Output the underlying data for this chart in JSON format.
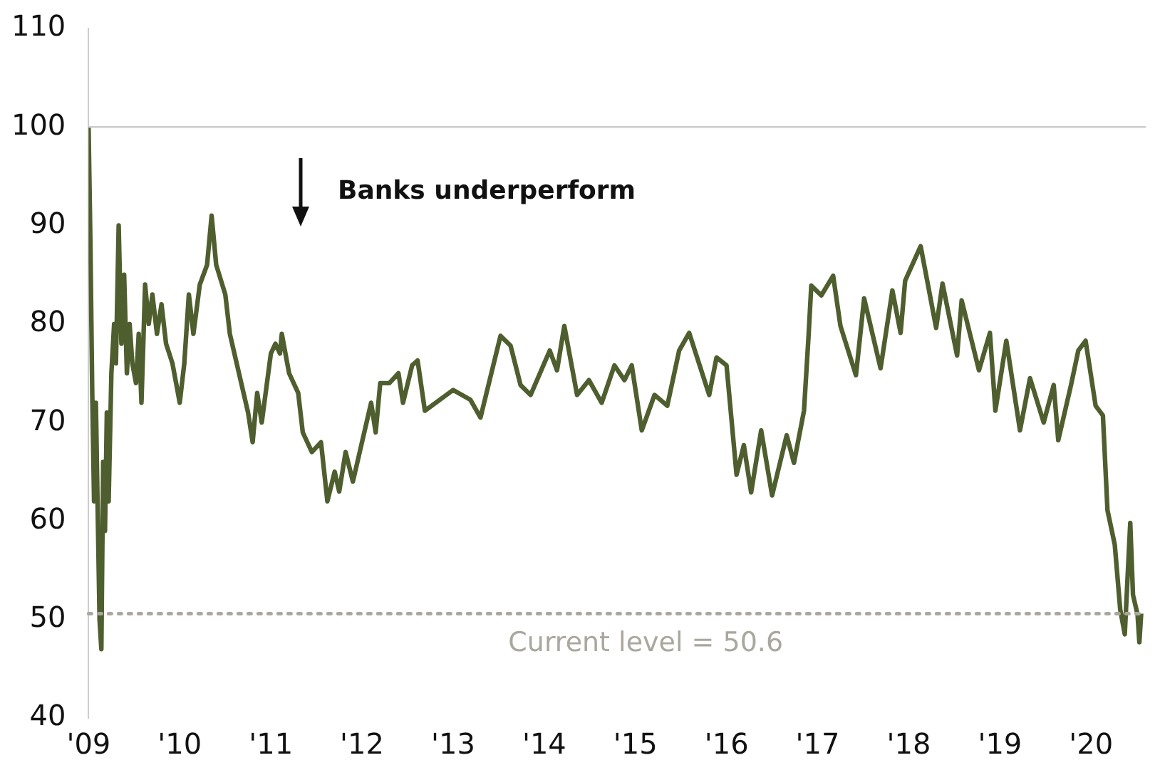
{
  "chart_data": {
    "type": "line",
    "annotations": [
      "Banks underperform"
    ],
    "x": [
      2009.0,
      2009.02,
      2009.04,
      2009.06,
      2009.08,
      2009.1,
      2009.12,
      2009.14,
      2009.16,
      2009.18,
      2009.2,
      2009.22,
      2009.25,
      2009.28,
      2009.3,
      2009.33,
      2009.36,
      2009.39,
      2009.42,
      2009.45,
      2009.48,
      2009.52,
      2009.55,
      2009.58,
      2009.62,
      2009.66,
      2009.7,
      2009.75,
      2009.8,
      2009.85,
      2009.92,
      2010.0,
      2010.05,
      2010.1,
      2010.15,
      2010.22,
      2010.3,
      2010.35,
      2010.4,
      2010.5,
      2010.55,
      2010.65,
      2010.75,
      2010.8,
      2010.85,
      2010.9,
      2011.0,
      2011.05,
      2011.1,
      2011.12,
      2011.2,
      2011.3,
      2011.35,
      2011.45,
      2011.55,
      2011.62,
      2011.7,
      2011.75,
      2011.82,
      2011.9,
      2012.0,
      2012.1,
      2012.15,
      2012.2,
      2012.3,
      2012.4,
      2012.45,
      2012.55,
      2012.61,
      2012.69,
      2013.0,
      2013.19,
      2013.3,
      2013.52,
      2013.63,
      2013.74,
      2013.85,
      2014.06,
      2014.14,
      2014.22,
      2014.36,
      2014.49,
      2014.63,
      2014.77,
      2014.88,
      2014.96,
      2015.07,
      2015.21,
      2015.35,
      2015.48,
      2015.59,
      2015.67,
      2015.81,
      2015.89,
      2016.0,
      2016.11,
      2016.19,
      2016.27,
      2016.38,
      2016.5,
      2016.66,
      2016.74,
      2016.85,
      2016.9,
      2016.93,
      2017.04,
      2017.17,
      2017.25,
      2017.42,
      2017.51,
      2017.69,
      2017.82,
      2017.91,
      2017.96,
      2018.13,
      2018.3,
      2018.37,
      2018.53,
      2018.58,
      2018.77,
      2018.89,
      2018.95,
      2019.07,
      2019.22,
      2019.33,
      2019.48,
      2019.59,
      2019.64,
      2019.78,
      2019.86,
      2019.94,
      2020.05,
      2020.13,
      2020.18,
      2020.26,
      2020.32,
      2020.37,
      2020.43,
      2020.46,
      2020.51,
      2020.53,
      2020.55
    ],
    "series": [
      {
        "color": "#4f5e2e",
        "values": [
          100,
          88,
          73,
          62,
          72,
          61,
          50,
          47,
          66,
          59,
          71,
          62,
          75,
          80,
          76,
          90,
          78,
          85,
          75,
          80,
          76,
          74,
          79,
          72,
          84,
          80,
          83,
          79,
          82,
          78,
          76,
          72,
          76,
          83,
          79,
          84,
          86,
          91,
          86,
          83,
          79,
          75,
          71,
          68,
          73,
          70,
          77,
          78,
          77,
          79,
          75,
          73,
          69,
          67,
          68,
          62,
          65,
          63,
          67,
          64,
          68,
          72,
          69,
          74,
          74,
          75,
          72,
          75.8,
          76.3,
          71.2,
          73.3,
          72.3,
          70.5,
          78.8,
          77.8,
          73.8,
          72.8,
          77.3,
          75.3,
          79.8,
          72.8,
          74.3,
          72,
          75.8,
          74.3,
          75.8,
          69.2,
          72.8,
          71.7,
          77.3,
          79.1,
          76.8,
          72.8,
          76.6,
          75.8,
          64.7,
          67.7,
          62.9,
          69.2,
          62.6,
          68.7,
          65.9,
          71.2,
          78.8,
          83.9,
          82.9,
          84.9,
          79.8,
          74.8,
          82.6,
          75.5,
          83.4,
          79.1,
          84.4,
          87.9,
          79.6,
          84.1,
          76.8,
          82.4,
          75.3,
          79.1,
          71.2,
          78.3,
          69.2,
          74.5,
          70,
          73.8,
          68.2,
          73.8,
          77.3,
          78.3,
          71.7,
          70.7,
          61.1,
          57.6,
          51,
          48.5,
          59.8,
          52.5,
          50.5,
          47.7,
          50.6
        ]
      }
    ],
    "xlim": [
      2009,
      2020.6
    ],
    "xticks": [
      {
        "value": 2009,
        "label": "'09"
      },
      {
        "value": 2010,
        "label": "'10"
      },
      {
        "value": 2011,
        "label": "'11"
      },
      {
        "value": 2012,
        "label": "'12"
      },
      {
        "value": 2013,
        "label": "'13"
      },
      {
        "value": 2014,
        "label": "'14"
      },
      {
        "value": 2015,
        "label": "'15"
      },
      {
        "value": 2016,
        "label": "'16"
      },
      {
        "value": 2017,
        "label": "'17"
      },
      {
        "value": 2018,
        "label": "'18"
      },
      {
        "value": 2019,
        "label": "'19"
      },
      {
        "value": 2020,
        "label": "'20"
      }
    ],
    "ylim": [
      40,
      110
    ],
    "yticks": [
      40,
      50,
      60,
      70,
      80,
      90,
      100,
      110
    ],
    "ref_lines": [
      {
        "axis": "y",
        "value": 100,
        "label": null,
        "color": "#cccccc",
        "line_style": "solid"
      },
      {
        "axis": "y",
        "value": 50.6,
        "label": "Current level = 50.6",
        "color": "#aaa79f",
        "line_style": "dotted"
      }
    ],
    "grid": false,
    "legend": false,
    "marker": "none",
    "line_style": "solid"
  }
}
